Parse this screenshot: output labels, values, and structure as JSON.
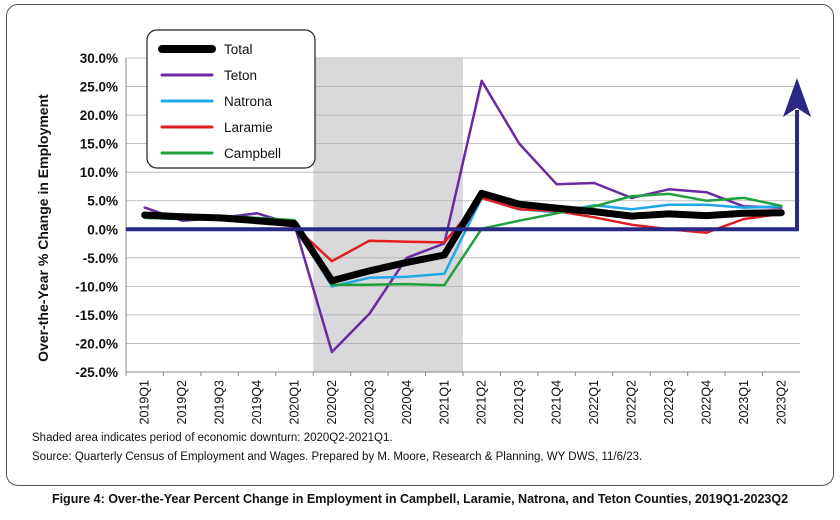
{
  "chart_data": {
    "type": "line",
    "ylabel": "Over-the-Year % Change in Employment",
    "ylim": [
      -25,
      30
    ],
    "yticks": [
      "30.0%",
      "25.0%",
      "20.0%",
      "15.0%",
      "10.0%",
      "5.0%",
      "0.0%",
      "-5.0%",
      "-10.0%",
      "-15.0%",
      "-20.0%",
      "-25.0%"
    ],
    "ytick_values": [
      30,
      25,
      20,
      15,
      10,
      5,
      0,
      -5,
      -10,
      -15,
      -20,
      -25
    ],
    "categories": [
      "2019Q1",
      "2019Q2",
      "2019Q3",
      "2019Q4",
      "2020Q1",
      "2020Q2",
      "2020Q3",
      "2020Q4",
      "2021Q1",
      "2021Q2",
      "2021Q3",
      "2021Q4",
      "2022Q1",
      "2022Q2",
      "2022Q3",
      "2022Q4",
      "2023Q1",
      "2023Q2"
    ],
    "shaded_period": [
      "2020Q2",
      "2021Q1"
    ],
    "grid": true,
    "legend_position": "top-left",
    "series": [
      {
        "name": "Total",
        "color": "#000000",
        "width": 7,
        "values": [
          2.5,
          2.2,
          2.0,
          1.5,
          1.0,
          -9.0,
          -7.3,
          -5.8,
          -4.5,
          6.3,
          4.4,
          3.7,
          3.1,
          2.3,
          2.7,
          2.4,
          2.8,
          2.9
        ]
      },
      {
        "name": "Teton",
        "color": "#6a2aa2",
        "width": 2.5,
        "values": [
          3.8,
          1.5,
          2.0,
          2.8,
          0.8,
          -21.5,
          -14.8,
          -5.0,
          -2.5,
          26.0,
          15.0,
          7.9,
          8.1,
          5.5,
          7.0,
          6.5,
          4.0,
          3.8
        ]
      },
      {
        "name": "Natrona",
        "color": "#1ea8e8",
        "width": 2.5,
        "values": [
          2.0,
          1.8,
          1.8,
          1.5,
          0.8,
          -10.0,
          -8.5,
          -8.3,
          -7.8,
          5.5,
          3.5,
          3.0,
          4.2,
          3.5,
          4.3,
          4.3,
          3.8,
          4.0
        ]
      },
      {
        "name": "Laramie",
        "color": "#e21d22",
        "width": 2.5,
        "values": [
          2.5,
          2.3,
          2.3,
          1.2,
          0.5,
          -5.6,
          -2.0,
          -2.2,
          -2.3,
          5.5,
          3.5,
          3.2,
          2.1,
          0.8,
          0.0,
          -0.6,
          1.8,
          2.7
        ]
      },
      {
        "name": "Campbell",
        "color": "#1fa13d",
        "width": 2.5,
        "values": [
          2.0,
          1.8,
          2.4,
          2.0,
          1.6,
          -9.7,
          -9.7,
          -9.6,
          -9.8,
          0.1,
          1.5,
          2.8,
          4.0,
          5.8,
          6.2,
          5.0,
          5.5,
          4.1
        ]
      }
    ]
  },
  "notes": {
    "line1": "Shaded area indicates period of economic downturn: 2020Q2-2021Q1.",
    "line2": "Source: Quarterly Census of Employment and Wages. Prepared by M. Moore, Research & Planning, WY DWS, 11/6/23."
  },
  "caption": "Figure 4: Over-the-Year Percent Change in Employment in Campbell, Laramie, Natrona, and Teton Counties, 2019Q1-2023Q2",
  "colors": {
    "axis": "#2a2a86",
    "shade": "#d9d9db",
    "grid": "#b0b0b0"
  }
}
